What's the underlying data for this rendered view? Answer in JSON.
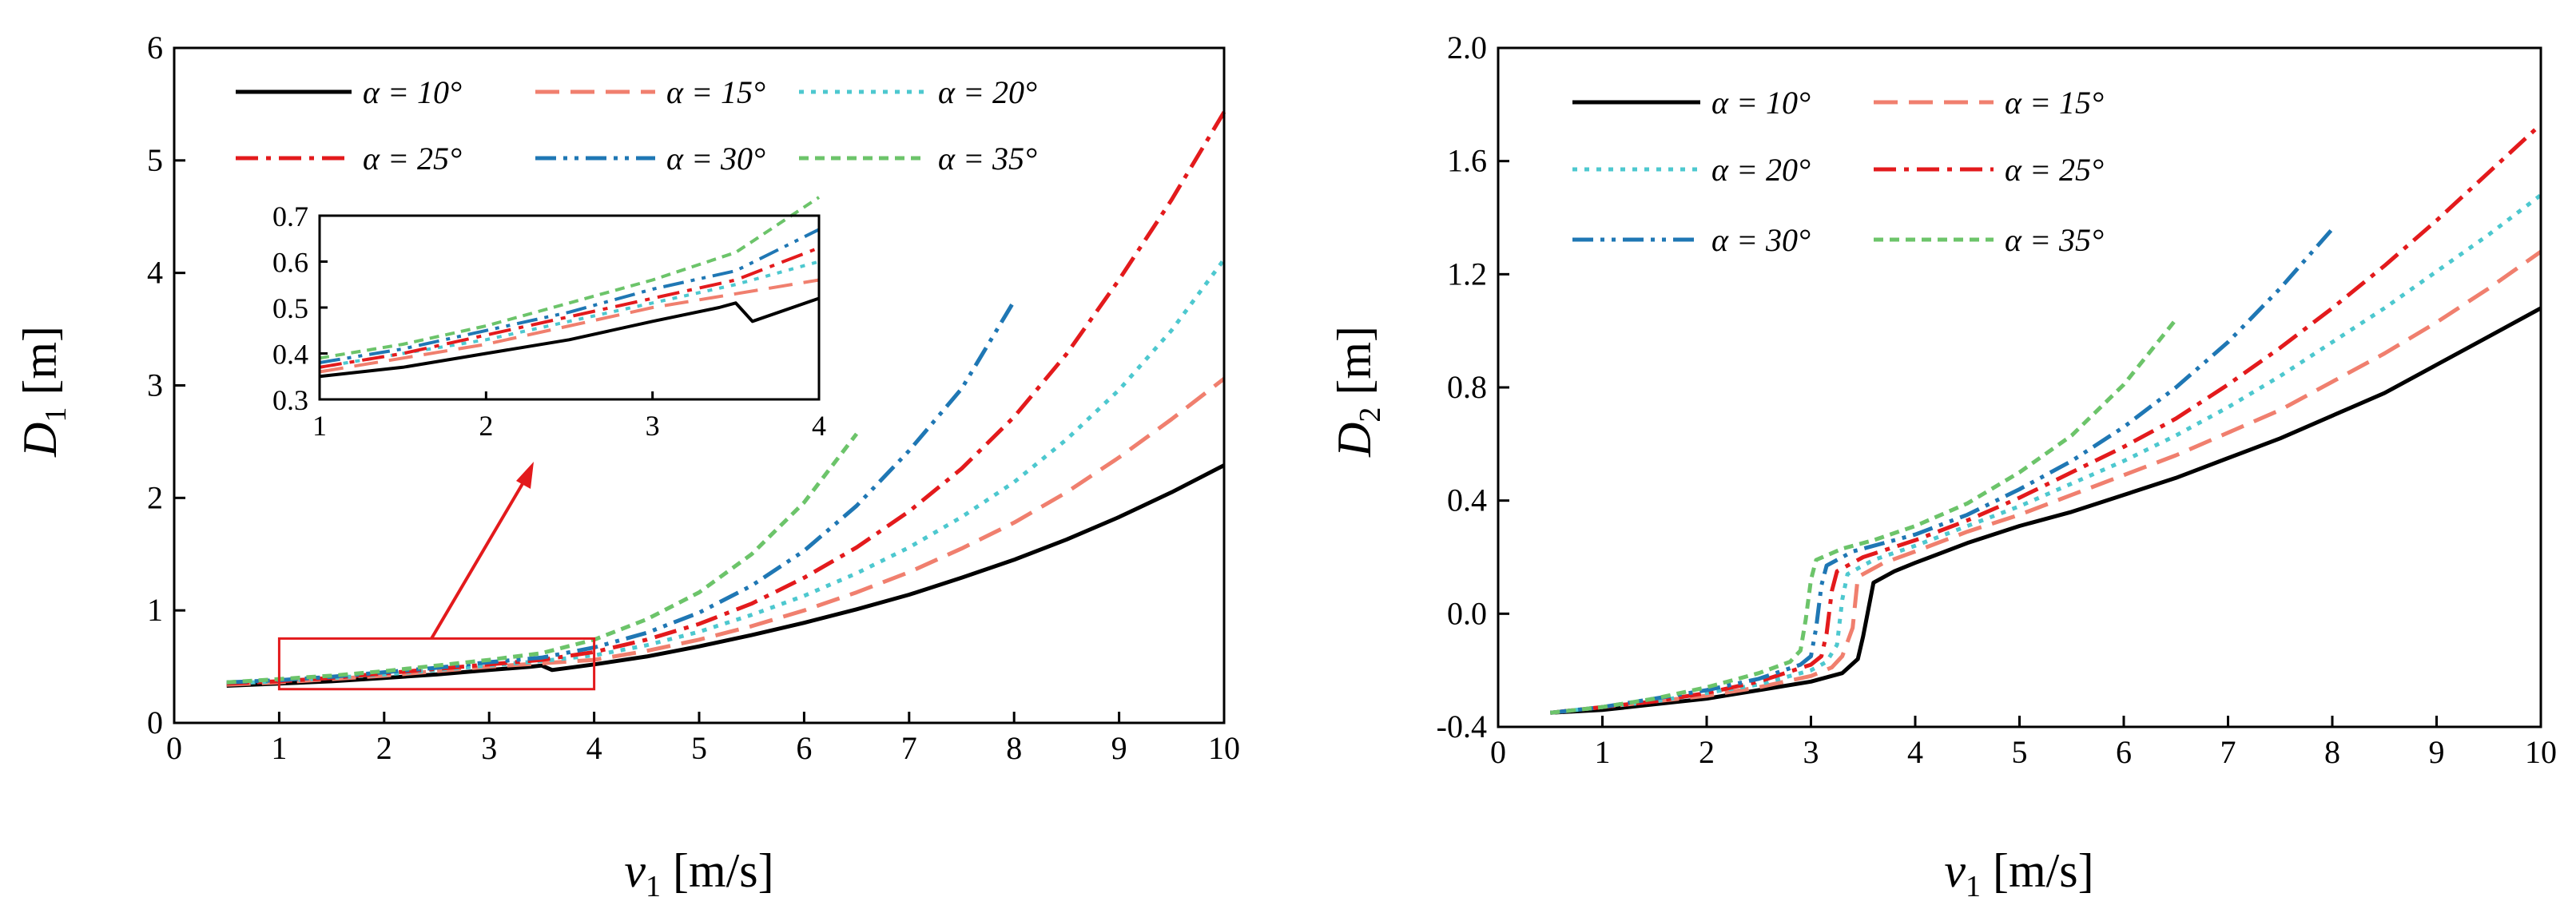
{
  "chart_data": [
    {
      "id": "left",
      "type": "line",
      "xlabel": "v1 [m/s]",
      "ylabel": "D1 [m]",
      "xlabel_parts": {
        "var": "v",
        "sub": "1",
        "unit": " [m/s]"
      },
      "ylabel_parts": {
        "var": "D",
        "sub": "1",
        "unit": " [m]"
      },
      "xlim": [
        0,
        10
      ],
      "ylim": [
        0,
        6
      ],
      "xticks": [
        0,
        1,
        2,
        3,
        4,
        5,
        6,
        7,
        8,
        9,
        10
      ],
      "yticks": [
        0,
        1,
        2,
        3,
        4,
        5,
        6
      ],
      "legend_placement": "top-left",
      "series": [
        {
          "name": "α = 10°",
          "color": "#000000",
          "style": "solid",
          "x": [
            0.5,
            1,
            1.5,
            2,
            2.5,
            3,
            3.4,
            3.5,
            3.6,
            4,
            4.5,
            5,
            5.5,
            6,
            6.5,
            7,
            7.5,
            8,
            8.5,
            9,
            9.5,
            10
          ],
          "y": [
            0.33,
            0.35,
            0.37,
            0.4,
            0.43,
            0.47,
            0.5,
            0.51,
            0.47,
            0.52,
            0.59,
            0.68,
            0.78,
            0.89,
            1.01,
            1.14,
            1.29,
            1.45,
            1.63,
            1.83,
            2.05,
            2.29
          ]
        },
        {
          "name": "α = 15°",
          "color": "#f07f6e",
          "style": "dashed",
          "x": [
            0.5,
            1,
            1.5,
            2,
            2.5,
            3,
            3.5,
            4,
            4.5,
            5,
            5.5,
            6,
            6.5,
            7,
            7.5,
            8,
            8.5,
            9,
            9.5,
            10
          ],
          "y": [
            0.34,
            0.36,
            0.39,
            0.42,
            0.46,
            0.5,
            0.53,
            0.56,
            0.64,
            0.74,
            0.86,
            1.0,
            1.16,
            1.34,
            1.55,
            1.78,
            2.05,
            2.36,
            2.7,
            3.06
          ]
        },
        {
          "name": "α = 20°",
          "color": "#4dc8cf",
          "style": "dotted",
          "x": [
            0.5,
            1,
            1.5,
            2,
            2.5,
            3,
            3.5,
            4,
            4.5,
            5,
            5.5,
            6,
            6.5,
            7,
            7.5,
            8,
            8.5,
            9,
            9.5,
            10
          ],
          "y": [
            0.35,
            0.37,
            0.4,
            0.43,
            0.47,
            0.51,
            0.55,
            0.6,
            0.69,
            0.81,
            0.96,
            1.13,
            1.33,
            1.56,
            1.83,
            2.14,
            2.52,
            2.96,
            3.49,
            4.12
          ]
        },
        {
          "name": "α = 25°",
          "color": "#e31a1c",
          "style": "dashdot",
          "x": [
            0.5,
            1,
            1.5,
            2,
            2.5,
            3,
            3.5,
            4,
            4.5,
            5,
            5.5,
            6,
            6.5,
            7,
            7.5,
            8,
            8.5,
            9,
            9.5,
            10
          ],
          "y": [
            0.35,
            0.37,
            0.4,
            0.44,
            0.48,
            0.52,
            0.56,
            0.63,
            0.74,
            0.88,
            1.06,
            1.29,
            1.56,
            1.88,
            2.26,
            2.72,
            3.28,
            3.94,
            4.65,
            5.43
          ]
        },
        {
          "name": "α = 30°",
          "color": "#1f77b4",
          "style": "dashdotdot",
          "x": [
            0.5,
            1,
            1.5,
            2,
            2.5,
            3,
            3.5,
            4,
            4.5,
            5,
            5.5,
            6,
            6.5,
            7,
            7.5,
            8
          ],
          "y": [
            0.36,
            0.38,
            0.41,
            0.45,
            0.49,
            0.54,
            0.58,
            0.67,
            0.8,
            0.98,
            1.22,
            1.53,
            1.93,
            2.42,
            2.97,
            3.75
          ]
        },
        {
          "name": "α = 35°",
          "color": "#6cc46a",
          "style": "shortdash",
          "x": [
            0.5,
            1,
            1.5,
            2,
            2.5,
            3,
            3.5,
            4,
            4.5,
            5,
            5.5,
            6,
            6.5
          ],
          "y": [
            0.36,
            0.39,
            0.42,
            0.46,
            0.51,
            0.56,
            0.62,
            0.74,
            0.92,
            1.16,
            1.5,
            1.96,
            2.57
          ]
        }
      ],
      "inset": {
        "xlim": [
          1,
          4
        ],
        "ylim": [
          0.3,
          0.7
        ],
        "xticks": [
          1,
          2,
          3,
          4
        ],
        "yticks": [
          0.3,
          0.4,
          0.5,
          0.6,
          0.7
        ],
        "ytick_labels": [
          "0.3",
          "0.4",
          "0.5",
          "0.6",
          "0.7"
        ]
      },
      "zoom_box": {
        "x": [
          1,
          4
        ],
        "y": [
          0.3,
          0.75
        ],
        "color": "#e31a1c"
      }
    },
    {
      "id": "right",
      "type": "line",
      "xlabel": "v1 [m/s]",
      "ylabel": "D2 [m]",
      "xlabel_parts": {
        "var": "v",
        "sub": "1",
        "unit": " [m/s]"
      },
      "ylabel_parts": {
        "var": "D",
        "sub": "2",
        "unit": " [m]"
      },
      "xlim": [
        0,
        10
      ],
      "ylim": [
        -0.4,
        2.0
      ],
      "xticks": [
        0,
        1,
        2,
        3,
        4,
        5,
        6,
        7,
        8,
        9,
        10
      ],
      "yticks": [
        -0.4,
        0.0,
        0.4,
        0.8,
        1.2,
        1.6,
        2.0
      ],
      "ytick_labels": [
        "-0.4",
        "0.0",
        "0.4",
        "0.8",
        "1.2",
        "1.6",
        "2.0"
      ],
      "legend_placement": "top-left",
      "series": [
        {
          "name": "α = 10°",
          "color": "#000000",
          "style": "solid",
          "x": [
            0.5,
            1,
            1.5,
            2,
            2.5,
            3,
            3.3,
            3.45,
            3.5,
            3.6,
            3.8,
            4,
            4.5,
            5,
            5.5,
            6,
            6.5,
            7,
            7.5,
            8,
            8.5,
            9,
            9.5,
            10
          ],
          "y": [
            -0.35,
            -0.34,
            -0.32,
            -0.3,
            -0.27,
            -0.24,
            -0.21,
            -0.16,
            -0.08,
            0.11,
            0.15,
            0.18,
            0.25,
            0.31,
            0.36,
            0.42,
            0.48,
            0.55,
            0.62,
            0.7,
            0.78,
            0.88,
            0.98,
            1.08
          ]
        },
        {
          "name": "α = 15°",
          "color": "#f07f6e",
          "style": "dashed",
          "x": [
            0.5,
            1,
            1.5,
            2,
            2.5,
            3,
            3.2,
            3.3,
            3.4,
            3.45,
            3.7,
            4,
            4.5,
            5,
            5.5,
            6,
            6.5,
            7,
            7.5,
            8,
            8.5,
            9,
            9.5,
            10
          ],
          "y": [
            -0.35,
            -0.33,
            -0.31,
            -0.29,
            -0.26,
            -0.22,
            -0.19,
            -0.15,
            -0.05,
            0.13,
            0.18,
            0.22,
            0.29,
            0.35,
            0.42,
            0.49,
            0.56,
            0.64,
            0.72,
            0.82,
            0.92,
            1.03,
            1.15,
            1.28
          ]
        },
        {
          "name": "α = 20°",
          "color": "#4dc8cf",
          "style": "dotted",
          "x": [
            0.5,
            1,
            1.5,
            2,
            2.5,
            3,
            3.15,
            3.25,
            3.3,
            3.35,
            3.6,
            4,
            4.5,
            5,
            5.5,
            6,
            6.5,
            7,
            7.5,
            8,
            8.5,
            9,
            9.5,
            10
          ],
          "y": [
            -0.35,
            -0.33,
            -0.31,
            -0.28,
            -0.25,
            -0.2,
            -0.17,
            -0.11,
            0.05,
            0.14,
            0.19,
            0.24,
            0.31,
            0.38,
            0.46,
            0.54,
            0.63,
            0.73,
            0.84,
            0.96,
            1.08,
            1.21,
            1.34,
            1.48
          ]
        },
        {
          "name": "α = 25°",
          "color": "#e31a1c",
          "style": "dashdot",
          "x": [
            0.5,
            1,
            1.5,
            2,
            2.5,
            3,
            3.1,
            3.15,
            3.2,
            3.25,
            3.5,
            4,
            4.5,
            5,
            5.5,
            6,
            6.5,
            7,
            7.5,
            8,
            8.5,
            9,
            9.5,
            10
          ],
          "y": [
            -0.35,
            -0.33,
            -0.31,
            -0.28,
            -0.24,
            -0.18,
            -0.15,
            -0.07,
            0.08,
            0.15,
            0.2,
            0.26,
            0.33,
            0.41,
            0.5,
            0.59,
            0.69,
            0.81,
            0.94,
            1.08,
            1.23,
            1.39,
            1.56,
            1.73
          ]
        },
        {
          "name": "α = 30°",
          "color": "#1f77b4",
          "style": "dashdotdot",
          "x": [
            0.5,
            1,
            1.5,
            2,
            2.5,
            2.9,
            3.0,
            3.05,
            3.1,
            3.15,
            3.4,
            4,
            4.5,
            5,
            5.5,
            6,
            6.5,
            7,
            7.5,
            8
          ],
          "y": [
            -0.35,
            -0.33,
            -0.3,
            -0.27,
            -0.23,
            -0.18,
            -0.15,
            -0.05,
            0.1,
            0.17,
            0.22,
            0.28,
            0.35,
            0.44,
            0.54,
            0.66,
            0.8,
            0.96,
            1.15,
            1.36
          ]
        },
        {
          "name": "α = 35°",
          "color": "#6cc46a",
          "style": "shortdash",
          "x": [
            0.5,
            1,
            1.5,
            2,
            2.5,
            2.8,
            2.9,
            2.95,
            3.0,
            3.05,
            3.3,
            3.6,
            4,
            4.5,
            5,
            5.5,
            6,
            6.5
          ],
          "y": [
            -0.35,
            -0.33,
            -0.3,
            -0.26,
            -0.21,
            -0.17,
            -0.13,
            -0.02,
            0.12,
            0.19,
            0.23,
            0.26,
            0.31,
            0.39,
            0.5,
            0.63,
            0.81,
            1.04
          ]
        }
      ]
    }
  ]
}
